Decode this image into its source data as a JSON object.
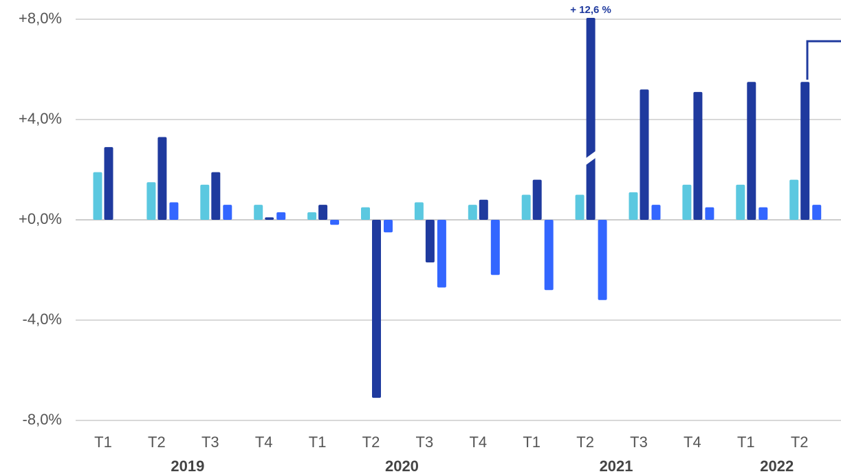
{
  "chart_data": {
    "type": "bar",
    "groups": [
      {
        "label": "2019",
        "categories": [
          "T1",
          "T2",
          "T3",
          "T4"
        ]
      },
      {
        "label": "2020",
        "categories": [
          "T1",
          "T2",
          "T3",
          "T4"
        ]
      },
      {
        "label": "2021",
        "categories": [
          "T1",
          "T2",
          "T3",
          "T4"
        ]
      },
      {
        "label": "2022",
        "categories": [
          "T1",
          "T2"
        ]
      }
    ],
    "series": [
      {
        "color": "#5bc8e0",
        "values": [
          1.9,
          1.5,
          1.4,
          0.6,
          0.3,
          0.5,
          0.7,
          0.6,
          1.0,
          1.0,
          1.1,
          1.4,
          1.4,
          1.6
        ]
      },
      {
        "color": "#1f3a9e",
        "values": [
          2.9,
          3.3,
          1.9,
          0.1,
          0.6,
          -7.1,
          -1.7,
          0.8,
          1.6,
          12.6,
          5.2,
          5.1,
          5.5,
          5.5
        ],
        "value_labels": [
          null,
          null,
          null,
          null,
          null,
          null,
          null,
          null,
          null,
          "+ 12,6 %",
          null,
          null,
          null,
          null
        ]
      },
      {
        "color": "#3366ff",
        "values": [
          null,
          0.7,
          0.6,
          0.3,
          -0.2,
          -0.5,
          -2.7,
          -2.2,
          -2.8,
          -3.2,
          0.6,
          0.5,
          0.5,
          0.6
        ]
      }
    ],
    "ylim": [
      -8,
      8
    ],
    "yticks": [
      {
        "value": -8,
        "label": "-8,0%"
      },
      {
        "value": -4,
        "label": "-4,0%"
      },
      {
        "value": 0,
        "label": "+0,0%"
      },
      {
        "value": 4,
        "label": "+4,0%"
      },
      {
        "value": 8,
        "label": "+8,0%"
      }
    ],
    "grid": true
  }
}
